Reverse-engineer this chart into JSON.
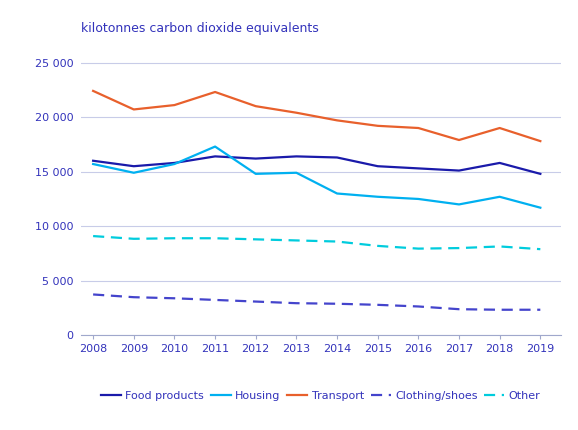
{
  "years": [
    2008,
    2009,
    2010,
    2011,
    2012,
    2013,
    2014,
    2015,
    2016,
    2017,
    2018,
    2019
  ],
  "food_products": [
    16000,
    15500,
    15800,
    16400,
    16200,
    16400,
    16300,
    15500,
    15300,
    15100,
    15800,
    14800
  ],
  "housing": [
    15700,
    14900,
    15700,
    17300,
    14800,
    14900,
    13000,
    12700,
    12500,
    12000,
    12700,
    11700
  ],
  "transport": [
    22400,
    20700,
    21100,
    22300,
    21000,
    20400,
    19700,
    19200,
    19000,
    17900,
    19000,
    17800
  ],
  "clothing_shoes": [
    3750,
    3500,
    3400,
    3250,
    3100,
    2950,
    2900,
    2800,
    2650,
    2400,
    2350,
    2350
  ],
  "other": [
    9100,
    8850,
    8900,
    8900,
    8800,
    8700,
    8600,
    8200,
    7950,
    8000,
    8150,
    7900
  ],
  "ylabel": "kilotonnes carbon dioxide equivalents",
  "ylim": [
    0,
    26000
  ],
  "yticks": [
    0,
    5000,
    10000,
    15000,
    20000,
    25000
  ],
  "ytick_labels": [
    "0",
    "5 000",
    "10 000",
    "15 000",
    "20 000",
    "25 000"
  ],
  "food_color": "#1a1aaa",
  "housing_color": "#00b0f0",
  "transport_color": "#e8602c",
  "clothing_color": "#4444cc",
  "other_color": "#00ccdd",
  "background_color": "#ffffff",
  "grid_color": "#c8cce8",
  "tick_label_color": "#3333bb",
  "ylabel_color": "#3333bb",
  "legend_labels": [
    "Food products",
    "Housing",
    "Transport",
    "Clothing/shoes",
    "Other"
  ]
}
